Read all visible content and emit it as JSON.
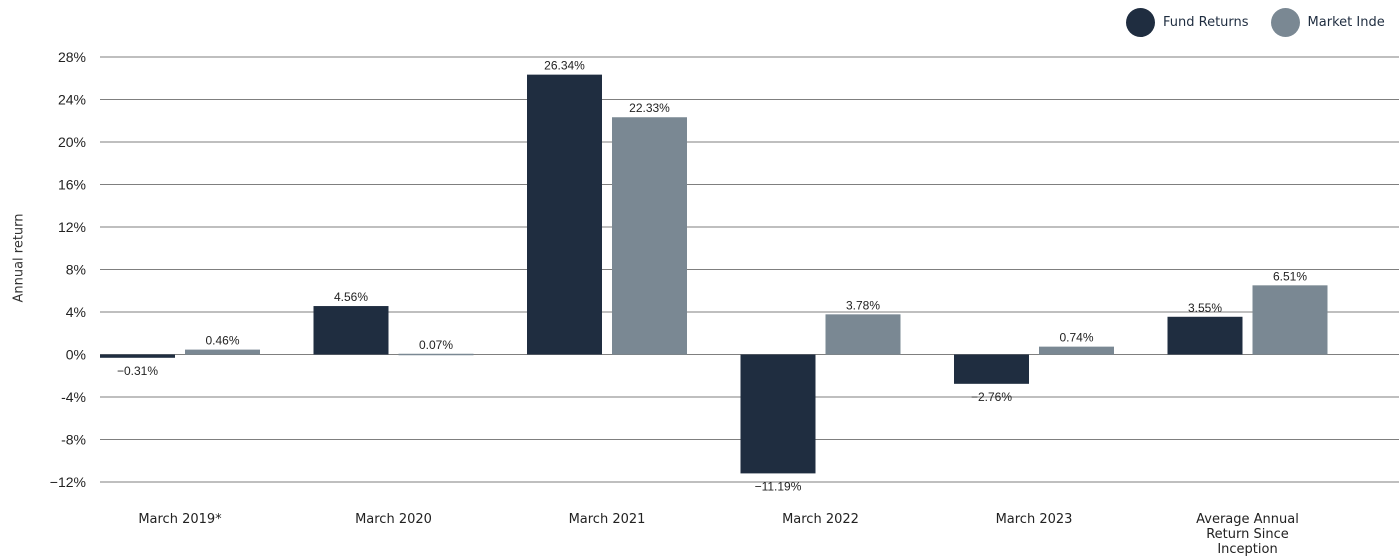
{
  "legend": {
    "fund_label": "Fund Returns",
    "index_label": "Market Inde"
  },
  "chart_data": {
    "type": "bar",
    "ylabel": "Annual return",
    "categories": [
      "March 2019*",
      "March 2020",
      "March 2021",
      "March 2022",
      "March 2023",
      "Average Annual Return Since Inception"
    ],
    "series": [
      {
        "name": "Fund Returns",
        "values": [
          -0.31,
          4.56,
          26.34,
          -11.19,
          -2.76,
          3.55
        ],
        "labels": [
          "−0.31%",
          "4.56%",
          "26.34%",
          "−11.19%",
          "−2.76%",
          "3.55%"
        ]
      },
      {
        "name": "Market Inde",
        "values": [
          0.46,
          0.07,
          22.33,
          3.78,
          0.74,
          6.51
        ],
        "labels": [
          "0.46%",
          "0.07%",
          "22.33%",
          "3.78%",
          "0.74%",
          "6.51%"
        ]
      }
    ],
    "ylim": [
      -12,
      28
    ],
    "yticks": [
      28,
      24,
      20,
      16,
      12,
      8,
      4,
      0,
      -4,
      -8,
      -12
    ],
    "ytick_labels": [
      "28%",
      "24%",
      "20%",
      "16%",
      "12%",
      "8%",
      "4%",
      "0%",
      "-4%",
      "-8%",
      "−12%"
    ],
    "grid": true,
    "legend_position": "top-right",
    "colors": {
      "fund": "#1f2d40",
      "index": "#7a8893"
    }
  }
}
